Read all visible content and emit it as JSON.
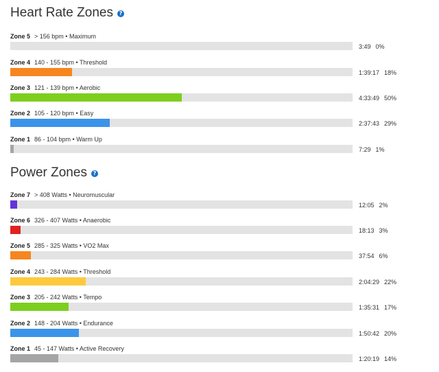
{
  "heart_rate": {
    "title": "Heart Rate Zones",
    "help_glyph": "?",
    "zones": [
      {
        "name": "Zone 5",
        "desc": "> 156 bpm • Maximum",
        "time": "3:49",
        "pct": "0%",
        "fraction": 0,
        "color": "#e02222"
      },
      {
        "name": "Zone 4",
        "desc": "140 - 155 bpm • Threshold",
        "time": "1:39:17",
        "pct": "18%",
        "fraction": 0.18,
        "color": "#f7861e"
      },
      {
        "name": "Zone 3",
        "desc": "121 - 139 bpm • Aerobic",
        "time": "4:33:49",
        "pct": "50%",
        "fraction": 0.5,
        "color": "#7ccf1e"
      },
      {
        "name": "Zone 2",
        "desc": "105 - 120 bpm • Easy",
        "time": "2:37:43",
        "pct": "29%",
        "fraction": 0.29,
        "color": "#3c93ea"
      },
      {
        "name": "Zone 1",
        "desc": "86 - 104 bpm • Warm Up",
        "time": "7:29",
        "pct": "1%",
        "fraction": 0.01,
        "color": "#a5a5a5"
      }
    ]
  },
  "power": {
    "title": "Power Zones",
    "help_glyph": "?",
    "zones": [
      {
        "name": "Zone 7",
        "desc": "> 408 Watts • Neuromuscular",
        "time": "12:05",
        "pct": "2%",
        "fraction": 0.02,
        "color": "#6234d8"
      },
      {
        "name": "Zone 6",
        "desc": "326 - 407 Watts • Anaerobic",
        "time": "18:13",
        "pct": "3%",
        "fraction": 0.03,
        "color": "#e02222"
      },
      {
        "name": "Zone 5",
        "desc": "285 - 325 Watts • VO2 Max",
        "time": "37:54",
        "pct": "6%",
        "fraction": 0.06,
        "color": "#f7861e"
      },
      {
        "name": "Zone 4",
        "desc": "243 - 284 Watts • Threshold",
        "time": "2:04:29",
        "pct": "22%",
        "fraction": 0.22,
        "color": "#fdc93e"
      },
      {
        "name": "Zone 3",
        "desc": "205 - 242 Watts • Tempo",
        "time": "1:35:31",
        "pct": "17%",
        "fraction": 0.17,
        "color": "#7ccf1e"
      },
      {
        "name": "Zone 2",
        "desc": "148 - 204 Watts • Endurance",
        "time": "1:50:42",
        "pct": "20%",
        "fraction": 0.2,
        "color": "#3c93ea"
      },
      {
        "name": "Zone 1",
        "desc": "45 - 147 Watts • Active Recovery",
        "time": "1:20:19",
        "pct": "14%",
        "fraction": 0.14,
        "color": "#a5a5a5"
      }
    ]
  }
}
